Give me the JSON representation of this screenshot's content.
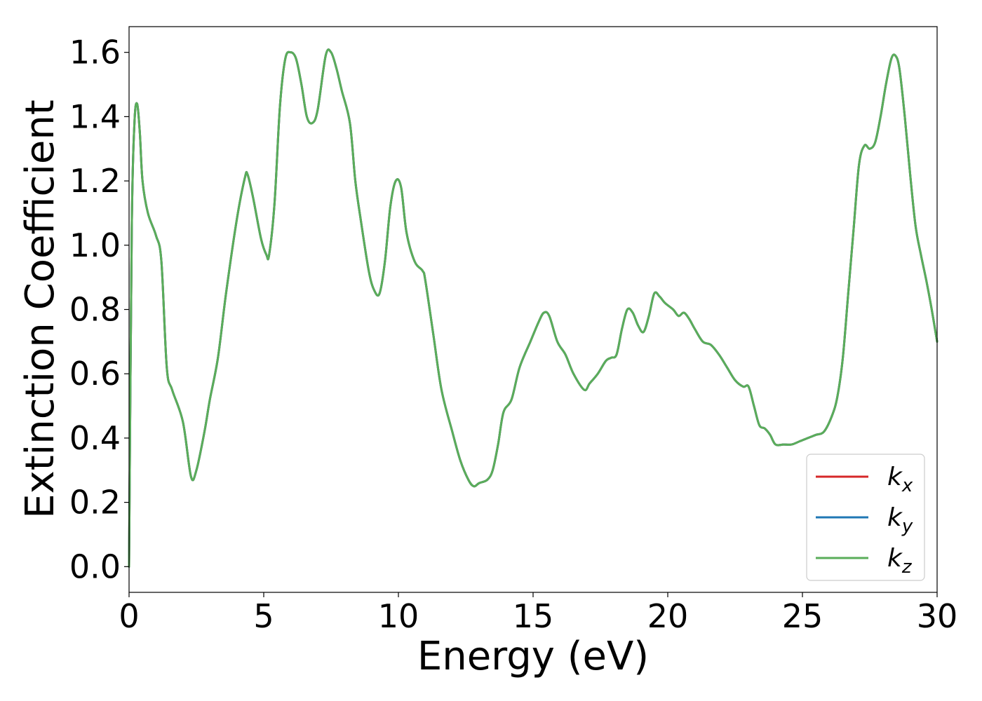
{
  "chart_data": {
    "type": "line",
    "title": "",
    "xlabel": "Energy (eV)",
    "ylabel": "Extinction Coefficient",
    "xlim": [
      0,
      30
    ],
    "ylim": [
      -0.08,
      1.68
    ],
    "xticks": [
      0,
      5,
      10,
      15,
      20,
      25,
      30
    ],
    "xtick_labels": [
      "0",
      "5",
      "10",
      "15",
      "20",
      "25",
      "30"
    ],
    "yticks": [
      0.0,
      0.2,
      0.4,
      0.6,
      0.8,
      1.0,
      1.2,
      1.4,
      1.6
    ],
    "ytick_labels": [
      "0.0",
      "0.2",
      "0.4",
      "0.6",
      "0.8",
      "1.0",
      "1.2",
      "1.4",
      "1.6"
    ],
    "grid": false,
    "legend_position": "lower-right",
    "note_series": "The three series overlap completely; all share the same values.",
    "x": [
      0,
      0.1,
      0.2,
      0.3,
      0.4,
      0.5,
      0.7,
      1.0,
      1.2,
      1.4,
      1.6,
      2.0,
      2.3,
      2.5,
      2.8,
      3.0,
      3.3,
      3.6,
      4.0,
      4.3,
      4.4,
      4.6,
      4.9,
      5.1,
      5.2,
      5.4,
      5.6,
      5.8,
      6.0,
      6.2,
      6.4,
      6.6,
      6.8,
      7.0,
      7.3,
      7.5,
      7.7,
      7.9,
      8.2,
      8.4,
      8.6,
      8.9,
      9.1,
      9.3,
      9.5,
      9.7,
      9.9,
      10.1,
      10.3,
      10.6,
      10.9,
      11.0,
      11.3,
      11.6,
      12.0,
      12.3,
      12.6,
      12.8,
      13.0,
      13.3,
      13.5,
      13.7,
      13.9,
      14.2,
      14.5,
      14.9,
      15.2,
      15.4,
      15.6,
      15.9,
      16.2,
      16.5,
      16.9,
      17.1,
      17.4,
      17.7,
      17.9,
      18.1,
      18.3,
      18.5,
      18.7,
      18.9,
      19.1,
      19.3,
      19.5,
      19.7,
      19.9,
      20.2,
      20.4,
      20.6,
      20.8,
      21.0,
      21.3,
      21.6,
      21.9,
      22.2,
      22.5,
      22.8,
      23.0,
      23.2,
      23.4,
      23.6,
      23.8,
      24.0,
      24.3,
      24.6,
      24.9,
      25.2,
      25.5,
      25.8,
      26.1,
      26.3,
      26.5,
      26.7,
      26.9,
      27.1,
      27.3,
      27.5,
      27.7,
      27.9,
      28.1,
      28.3,
      28.45,
      28.6,
      28.8,
      29.0,
      29.2,
      29.4,
      29.6,
      29.8,
      30.0
    ],
    "series": [
      {
        "name": "k_x",
        "label_base": "k",
        "label_sub": "x",
        "color": "#d62728",
        "values": [
          0.0,
          1.05,
          1.38,
          1.44,
          1.35,
          1.2,
          1.1,
          1.03,
          0.95,
          0.62,
          0.55,
          0.45,
          0.28,
          0.3,
          0.42,
          0.52,
          0.65,
          0.85,
          1.08,
          1.21,
          1.22,
          1.15,
          1.02,
          0.97,
          0.97,
          1.13,
          1.43,
          1.58,
          1.6,
          1.58,
          1.5,
          1.4,
          1.38,
          1.42,
          1.59,
          1.6,
          1.55,
          1.48,
          1.38,
          1.2,
          1.08,
          0.92,
          0.86,
          0.85,
          0.95,
          1.12,
          1.2,
          1.18,
          1.04,
          0.95,
          0.92,
          0.89,
          0.72,
          0.55,
          0.42,
          0.33,
          0.27,
          0.25,
          0.26,
          0.27,
          0.3,
          0.38,
          0.48,
          0.52,
          0.62,
          0.7,
          0.76,
          0.79,
          0.78,
          0.7,
          0.66,
          0.6,
          0.55,
          0.57,
          0.6,
          0.64,
          0.65,
          0.66,
          0.74,
          0.8,
          0.79,
          0.75,
          0.73,
          0.78,
          0.85,
          0.84,
          0.82,
          0.8,
          0.78,
          0.79,
          0.77,
          0.74,
          0.7,
          0.69,
          0.66,
          0.62,
          0.58,
          0.56,
          0.56,
          0.5,
          0.44,
          0.43,
          0.41,
          0.38,
          0.38,
          0.38,
          0.39,
          0.4,
          0.41,
          0.42,
          0.47,
          0.53,
          0.65,
          0.85,
          1.05,
          1.25,
          1.31,
          1.3,
          1.32,
          1.4,
          1.5,
          1.58,
          1.59,
          1.55,
          1.4,
          1.22,
          1.06,
          0.97,
          0.89,
          0.8,
          0.7
        ]
      },
      {
        "name": "k_y",
        "label_base": "k",
        "label_sub": "y",
        "color": "#1f77b4",
        "values": [
          0.0,
          1.05,
          1.38,
          1.44,
          1.35,
          1.2,
          1.1,
          1.03,
          0.95,
          0.62,
          0.55,
          0.45,
          0.28,
          0.3,
          0.42,
          0.52,
          0.65,
          0.85,
          1.08,
          1.21,
          1.22,
          1.15,
          1.02,
          0.97,
          0.97,
          1.13,
          1.43,
          1.58,
          1.6,
          1.58,
          1.5,
          1.4,
          1.38,
          1.42,
          1.59,
          1.6,
          1.55,
          1.48,
          1.38,
          1.2,
          1.08,
          0.92,
          0.86,
          0.85,
          0.95,
          1.12,
          1.2,
          1.18,
          1.04,
          0.95,
          0.92,
          0.89,
          0.72,
          0.55,
          0.42,
          0.33,
          0.27,
          0.25,
          0.26,
          0.27,
          0.3,
          0.38,
          0.48,
          0.52,
          0.62,
          0.7,
          0.76,
          0.79,
          0.78,
          0.7,
          0.66,
          0.6,
          0.55,
          0.57,
          0.6,
          0.64,
          0.65,
          0.66,
          0.74,
          0.8,
          0.79,
          0.75,
          0.73,
          0.78,
          0.85,
          0.84,
          0.82,
          0.8,
          0.78,
          0.79,
          0.77,
          0.74,
          0.7,
          0.69,
          0.66,
          0.62,
          0.58,
          0.56,
          0.56,
          0.5,
          0.44,
          0.43,
          0.41,
          0.38,
          0.38,
          0.38,
          0.39,
          0.4,
          0.41,
          0.42,
          0.47,
          0.53,
          0.65,
          0.85,
          1.05,
          1.25,
          1.31,
          1.3,
          1.32,
          1.4,
          1.5,
          1.58,
          1.59,
          1.55,
          1.4,
          1.22,
          1.06,
          0.97,
          0.89,
          0.8,
          0.7
        ]
      },
      {
        "name": "k_z",
        "label_base": "k",
        "label_sub": "z",
        "color": "#5aad5a",
        "values": [
          0.0,
          1.05,
          1.38,
          1.44,
          1.35,
          1.2,
          1.1,
          1.03,
          0.95,
          0.62,
          0.55,
          0.45,
          0.28,
          0.3,
          0.42,
          0.52,
          0.65,
          0.85,
          1.08,
          1.21,
          1.22,
          1.15,
          1.02,
          0.97,
          0.97,
          1.13,
          1.43,
          1.58,
          1.6,
          1.58,
          1.5,
          1.4,
          1.38,
          1.42,
          1.59,
          1.6,
          1.55,
          1.48,
          1.38,
          1.2,
          1.08,
          0.92,
          0.86,
          0.85,
          0.95,
          1.12,
          1.2,
          1.18,
          1.04,
          0.95,
          0.92,
          0.89,
          0.72,
          0.55,
          0.42,
          0.33,
          0.27,
          0.25,
          0.26,
          0.27,
          0.3,
          0.38,
          0.48,
          0.52,
          0.62,
          0.7,
          0.76,
          0.79,
          0.78,
          0.7,
          0.66,
          0.6,
          0.55,
          0.57,
          0.6,
          0.64,
          0.65,
          0.66,
          0.74,
          0.8,
          0.79,
          0.75,
          0.73,
          0.78,
          0.85,
          0.84,
          0.82,
          0.8,
          0.78,
          0.79,
          0.77,
          0.74,
          0.7,
          0.69,
          0.66,
          0.62,
          0.58,
          0.56,
          0.56,
          0.5,
          0.44,
          0.43,
          0.41,
          0.38,
          0.38,
          0.38,
          0.39,
          0.4,
          0.41,
          0.42,
          0.47,
          0.53,
          0.65,
          0.85,
          1.05,
          1.25,
          1.31,
          1.3,
          1.32,
          1.4,
          1.5,
          1.58,
          1.59,
          1.55,
          1.4,
          1.22,
          1.06,
          0.97,
          0.89,
          0.8,
          0.7
        ]
      }
    ]
  }
}
